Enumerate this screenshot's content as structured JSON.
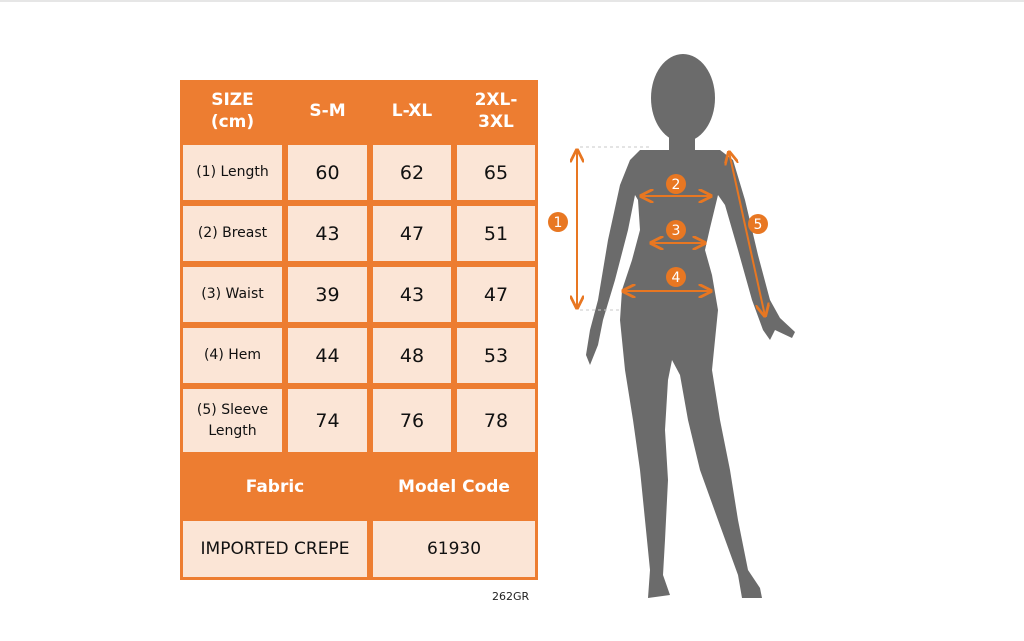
{
  "table": {
    "header": [
      "SIZE (cm)",
      "S-M",
      "L-XL",
      "2XL-3XL"
    ],
    "rows": [
      [
        "(1) Length",
        60,
        62,
        65
      ],
      [
        "(2) Breast",
        43,
        47,
        51
      ],
      [
        "(3) Waist",
        39,
        43,
        47
      ],
      [
        "(4) Hem",
        44,
        48,
        53
      ],
      [
        "(5) Sleeve Length",
        74,
        76,
        78
      ]
    ],
    "footer_header": [
      "Fabric",
      "Model Code"
    ],
    "footer_values": [
      "IMPORTED CREPE",
      61930
    ]
  },
  "code": "262GR",
  "diagram": {
    "markers": [
      1,
      2,
      3,
      4,
      5
    ]
  }
}
